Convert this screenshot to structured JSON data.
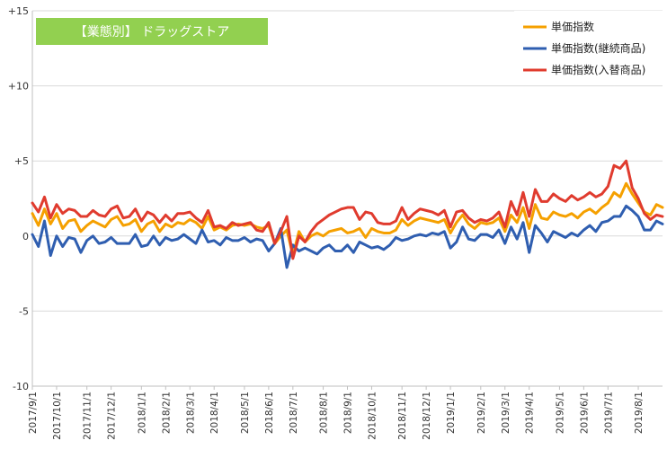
{
  "chart_data": {
    "type": "line",
    "title": "【業態別】 ドラッグストア",
    "xlabel": "",
    "ylabel": "",
    "ylim": [
      -10,
      15
    ],
    "y_ticks": [
      "+15",
      "+10",
      "+5",
      "0",
      "-5",
      "-10"
    ],
    "y_tick_values": [
      15,
      10,
      5,
      0,
      -5,
      -10
    ],
    "grid": true,
    "legend": "top-right",
    "x_tick_labels": [
      "2017/9/1",
      "2017/10/1",
      "2017/11/1",
      "2017/12/1",
      "2018/1/1",
      "2018/2/1",
      "2018/3/1",
      "2018/4/1",
      "2018/5/1",
      "2018/6/1",
      "2018/7/1",
      "2018/8/1",
      "2018/9/1",
      "2018/10/1",
      "2018/11/1",
      "2018/12/1",
      "2019/1/1",
      "2019/2/1",
      "2019/3/1",
      "2019/4/1",
      "2019/5/1",
      "2019/6/1",
      "2019/7/1",
      "2019/8/1"
    ],
    "x_tick_week_index": [
      0,
      4,
      9,
      13,
      18,
      22,
      26,
      30,
      35,
      39,
      43,
      48,
      52,
      56,
      61,
      65,
      69,
      74,
      78,
      82,
      87,
      91,
      95,
      100
    ],
    "series": [
      {
        "name": "単価指数",
        "color": "#F5A000",
        "values": [
          1.5,
          0.7,
          1.8,
          0.8,
          1.5,
          0.5,
          1.0,
          1.1,
          0.3,
          0.7,
          1.0,
          0.8,
          0.6,
          1.1,
          1.3,
          0.7,
          0.8,
          1.1,
          0.3,
          0.8,
          1.0,
          0.3,
          0.8,
          0.6,
          0.9,
          0.8,
          1.1,
          0.9,
          0.5,
          1.3,
          0.4,
          0.6,
          0.4,
          0.7,
          0.8,
          0.7,
          0.8,
          0.6,
          0.5,
          0.7,
          -0.5,
          0.0,
          0.4,
          -1.3,
          0.3,
          -0.4,
          0.0,
          0.2,
          0.0,
          0.3,
          0.4,
          0.5,
          0.2,
          0.3,
          0.5,
          -0.1,
          0.5,
          0.3,
          0.2,
          0.2,
          0.4,
          1.1,
          0.7,
          1.0,
          1.2,
          1.1,
          1.0,
          0.9,
          1.1,
          0.2,
          0.9,
          1.4,
          0.8,
          0.5,
          0.9,
          0.8,
          0.9,
          1.2,
          0.3,
          1.4,
          0.9,
          1.9,
          0.5,
          2.1,
          1.2,
          1.1,
          1.6,
          1.4,
          1.3,
          1.5,
          1.2,
          1.6,
          1.8,
          1.5,
          1.9,
          2.2,
          2.9,
          2.6,
          3.5,
          2.8,
          2.2,
          1.6,
          1.4,
          2.1,
          1.9
        ]
      },
      {
        "name": "単価指数(継続商品)",
        "color": "#2F5EB0",
        "values": [
          0.1,
          -0.7,
          1.0,
          -1.3,
          0.0,
          -0.7,
          -0.1,
          -0.2,
          -1.1,
          -0.3,
          0.0,
          -0.5,
          -0.4,
          -0.1,
          -0.5,
          -0.5,
          -0.5,
          0.1,
          -0.7,
          -0.6,
          0.0,
          -0.6,
          -0.1,
          -0.3,
          -0.2,
          0.1,
          -0.2,
          -0.5,
          0.4,
          -0.4,
          -0.3,
          -0.6,
          -0.1,
          -0.3,
          -0.3,
          -0.1,
          -0.4,
          -0.2,
          -0.3,
          -1.0,
          -0.5,
          0.5,
          -2.1,
          -0.6,
          -1.0,
          -0.8,
          -1.0,
          -1.2,
          -0.8,
          -0.6,
          -1.0,
          -1.0,
          -0.6,
          -1.1,
          -0.4,
          -0.6,
          -0.8,
          -0.7,
          -0.9,
          -0.6,
          -0.1,
          -0.3,
          -0.2,
          0.0,
          0.1,
          0.0,
          0.2,
          0.1,
          0.3,
          -0.8,
          -0.4,
          0.6,
          -0.2,
          -0.3,
          0.1,
          0.1,
          -0.1,
          0.4,
          -0.5,
          0.6,
          -0.2,
          0.9,
          -1.1,
          0.7,
          0.2,
          -0.4,
          0.3,
          0.1,
          -0.1,
          0.2,
          0.0,
          0.4,
          0.7,
          0.3,
          0.9,
          1.0,
          1.3,
          1.3,
          2.0,
          1.7,
          1.3,
          0.4,
          0.4,
          1.0,
          0.8
        ]
      },
      {
        "name": "単価指数(入替商品)",
        "color": "#E03B2E",
        "values": [
          2.2,
          1.6,
          2.6,
          1.2,
          2.1,
          1.5,
          1.8,
          1.7,
          1.3,
          1.3,
          1.7,
          1.4,
          1.3,
          1.8,
          2.0,
          1.2,
          1.3,
          1.8,
          1.0,
          1.6,
          1.4,
          0.9,
          1.4,
          1.0,
          1.5,
          1.5,
          1.6,
          1.2,
          0.9,
          1.7,
          0.6,
          0.7,
          0.5,
          0.9,
          0.7,
          0.8,
          0.9,
          0.4,
          0.3,
          0.9,
          -0.5,
          0.3,
          1.3,
          -1.5,
          0.0,
          -0.4,
          0.3,
          0.8,
          1.1,
          1.4,
          1.6,
          1.8,
          1.9,
          1.9,
          1.1,
          1.6,
          1.5,
          0.9,
          0.8,
          0.8,
          1.0,
          1.9,
          1.1,
          1.5,
          1.8,
          1.7,
          1.6,
          1.4,
          1.7,
          0.6,
          1.6,
          1.7,
          1.2,
          0.9,
          1.1,
          1.0,
          1.2,
          1.6,
          0.6,
          2.3,
          1.4,
          2.9,
          1.3,
          3.1,
          2.3,
          2.3,
          2.8,
          2.5,
          2.3,
          2.7,
          2.4,
          2.6,
          2.9,
          2.6,
          2.8,
          3.3,
          4.7,
          4.5,
          5.0,
          3.2,
          2.5,
          1.5,
          1.1,
          1.4,
          1.3
        ]
      }
    ]
  }
}
